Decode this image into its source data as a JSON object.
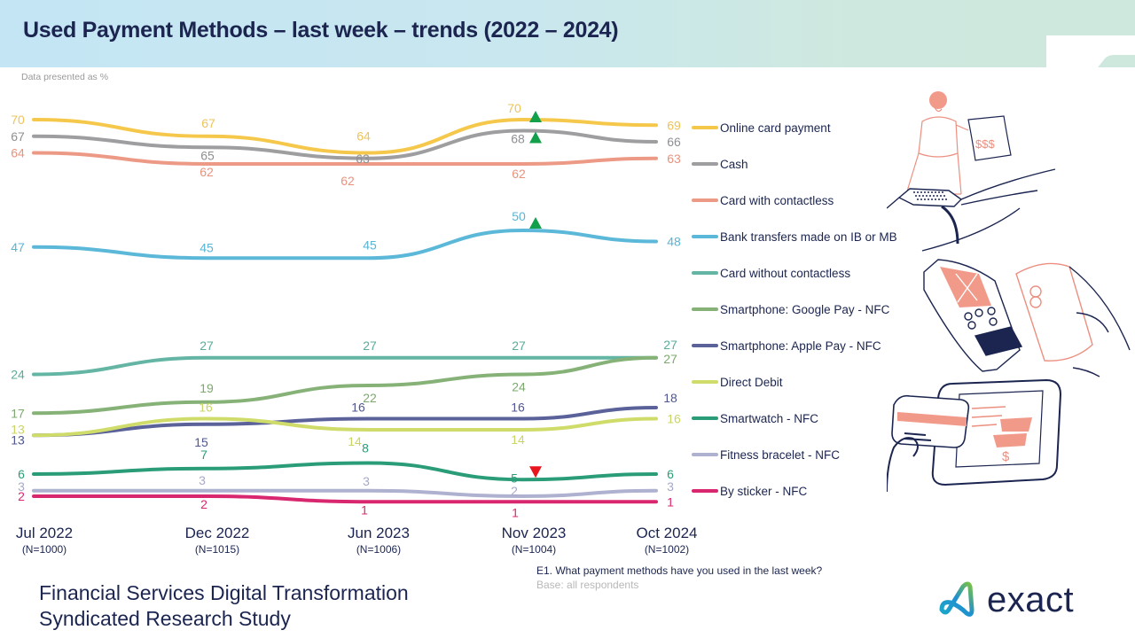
{
  "header": {
    "title": "Used Payment Methods – last week – trends (2022 – 2024)",
    "note": "Data presented as %"
  },
  "chart_data": {
    "type": "line",
    "title": "Used Payment Methods – last week – trends (2022 – 2024)",
    "xlabel": "",
    "ylabel": "%",
    "categories": [
      "Jul 2022",
      "Dec 2022",
      "Jun 2023",
      "Nov 2023",
      "Oct 2024"
    ],
    "sample_sizes": [
      "(N=1000)",
      "(N=1015)",
      "(N=1006)",
      "(N=1004)",
      "(N=1002)"
    ],
    "ylim": [
      0,
      72
    ],
    "grid": false,
    "legend_position": "right",
    "series": [
      {
        "name": "Online card payment",
        "color": "#f5c84c",
        "label_color": "#eec35a",
        "values": [
          70,
          67,
          64,
          70,
          69
        ]
      },
      {
        "name": "Cash",
        "color": "#9e9ea0",
        "label_color": "#8f8f93",
        "values": [
          67,
          65,
          63,
          68,
          66
        ]
      },
      {
        "name": "Card with contactless",
        "color": "#ec9a86",
        "label_color": "#e8937e",
        "values": [
          64,
          62,
          62,
          62,
          63
        ]
      },
      {
        "name": "Bank transfers made on IB or MB",
        "color": "#5bb8d8",
        "label_color": "#5bb4d4",
        "values": [
          47,
          45,
          45,
          50,
          48
        ]
      },
      {
        "name": "Card without contactless",
        "color": "#64b5a4",
        "label_color": "#5aab9a",
        "values": [
          24,
          27,
          27,
          27,
          27
        ]
      },
      {
        "name": "Smartphone: Google Pay - NFC",
        "color": "#86b278",
        "label_color": "#7da96e",
        "values": [
          17,
          19,
          22,
          24,
          27
        ]
      },
      {
        "name": "Smartphone: Apple Pay - NFC",
        "color": "#5b6299",
        "label_color": "#4f5690",
        "values": [
          13,
          15,
          16,
          16,
          18
        ]
      },
      {
        "name": "Direct Debit",
        "color": "#cfdc6a",
        "label_color": "#c9d563",
        "values": [
          13,
          16,
          14,
          14,
          16
        ]
      },
      {
        "name": "Smartwatch - NFC",
        "color": "#2a9d78",
        "label_color": "#2a9d78",
        "values": [
          6,
          7,
          8,
          5,
          6
        ]
      },
      {
        "name": "Fitness bracelet - NFC",
        "color": "#aeb1cf",
        "label_color": "#a6a9c8",
        "values": [
          3,
          3,
          3,
          2,
          3
        ]
      },
      {
        "name": "By sticker - NFC",
        "color": "#d9276f",
        "label_color": "#d9276f",
        "values": [
          2,
          2,
          1,
          1,
          1
        ]
      }
    ],
    "significance_markers": [
      {
        "series": "Online card payment",
        "category": "Nov 2023",
        "direction": "up",
        "color": "#13a04a"
      },
      {
        "series": "Cash",
        "category": "Nov 2023",
        "direction": "up",
        "color": "#13a04a"
      },
      {
        "series": "Bank transfers made on IB or MB",
        "category": "Nov 2023",
        "direction": "up",
        "color": "#13a04a"
      },
      {
        "series": "Smartwatch - NFC",
        "category": "Nov 2023",
        "direction": "down",
        "color": "#e8141e"
      }
    ]
  },
  "footer": {
    "question": "E1. What payment methods have you used in the last week?",
    "base": "Base: all respondents",
    "study_line1": "Financial Services Digital Transformation",
    "study_line2": "Syndicated Research Study",
    "logo_text": "exact"
  }
}
